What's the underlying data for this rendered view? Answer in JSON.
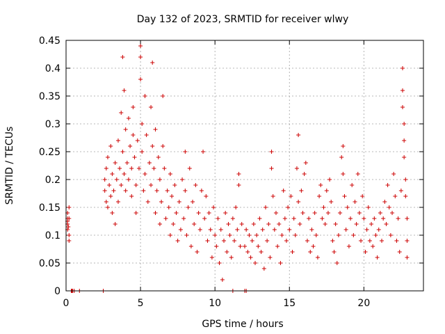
{
  "chart_data": {
    "type": "scatter",
    "title": "Day 132 of 2023, SRMTID for receiver wlwy",
    "xlabel": "GPS time / hours",
    "ylabel": "SRMTID / TECUs",
    "xlim": [
      0,
      24
    ],
    "ylim": [
      0,
      0.45
    ],
    "xticks": [
      0,
      5,
      10,
      15,
      20
    ],
    "yticks": [
      0,
      0.05,
      0.1,
      0.15,
      0.2,
      0.25,
      0.3,
      0.35,
      0.4,
      0.45
    ],
    "grid": true,
    "marker": "+",
    "marker_color": "#cc0000",
    "series": [
      {
        "name": "SRMTID",
        "points_estimated": [
          [
            0.1,
            0.11
          ],
          [
            0.1,
            0.13
          ],
          [
            0.1,
            0.12
          ],
          [
            0.2,
            0.1
          ],
          [
            0.2,
            0.15
          ],
          [
            0.1,
            0.14
          ],
          [
            0.2,
            0.09
          ],
          [
            0.2,
            0.13
          ],
          [
            0.1,
            0.125
          ],
          [
            0.15,
            0.115
          ],
          [
            0.35,
            0
          ],
          [
            0.4,
            0
          ],
          [
            0.45,
            0
          ],
          [
            0.55,
            0
          ],
          [
            0.9,
            0
          ],
          [
            2.5,
            0
          ],
          [
            11.2,
            0
          ],
          [
            12.0,
            0
          ],
          [
            12.1,
            0
          ],
          [
            2.6,
            0.18
          ],
          [
            2.6,
            0.2
          ],
          [
            2.7,
            0.16
          ],
          [
            2.7,
            0.22
          ],
          [
            2.8,
            0.15
          ],
          [
            2.8,
            0.24
          ],
          [
            2.9,
            0.19
          ],
          [
            3.0,
            0.17
          ],
          [
            3.0,
            0.26
          ],
          [
            3.1,
            0.14
          ],
          [
            3.1,
            0.21
          ],
          [
            3.2,
            0.18
          ],
          [
            3.3,
            0.23
          ],
          [
            3.3,
            0.12
          ],
          [
            3.4,
            0.2
          ],
          [
            3.5,
            0.16
          ],
          [
            3.5,
            0.27
          ],
          [
            3.6,
            0.22
          ],
          [
            3.7,
            0.19
          ],
          [
            3.7,
            0.32
          ],
          [
            3.8,
            0.25
          ],
          [
            3.8,
            0.42
          ],
          [
            3.9,
            0.21
          ],
          [
            3.9,
            0.36
          ],
          [
            4.0,
            0.18
          ],
          [
            4.0,
            0.29
          ],
          [
            4.1,
            0.23
          ],
          [
            4.2,
            0.2
          ],
          [
            4.2,
            0.31
          ],
          [
            4.3,
            0.26
          ],
          [
            4.4,
            0.22
          ],
          [
            4.4,
            0.17
          ],
          [
            4.5,
            0.28
          ],
          [
            4.5,
            0.33
          ],
          [
            4.6,
            0.24
          ],
          [
            4.7,
            0.19
          ],
          [
            4.7,
            0.14
          ],
          [
            4.8,
            0.27
          ],
          [
            4.9,
            0.22
          ],
          [
            5.0,
            0.44
          ],
          [
            5.0,
            0.42
          ],
          [
            5.0,
            0.38
          ],
          [
            5.1,
            0.3
          ],
          [
            5.1,
            0.25
          ],
          [
            5.2,
            0.18
          ],
          [
            5.3,
            0.21
          ],
          [
            5.3,
            0.35
          ],
          [
            5.4,
            0.28
          ],
          [
            5.5,
            0.16
          ],
          [
            5.6,
            0.23
          ],
          [
            5.7,
            0.33
          ],
          [
            5.7,
            0.19
          ],
          [
            5.8,
            0.41
          ],
          [
            5.8,
            0.26
          ],
          [
            5.9,
            0.22
          ],
          [
            6.0,
            0.14
          ],
          [
            6.0,
            0.29
          ],
          [
            6.1,
            0.18
          ],
          [
            6.2,
            0.24
          ],
          [
            6.3,
            0.12
          ],
          [
            6.3,
            0.2
          ],
          [
            6.4,
            0.16
          ],
          [
            6.5,
            0.35
          ],
          [
            6.5,
            0.26
          ],
          [
            6.6,
            0.22
          ],
          [
            6.7,
            0.13
          ],
          [
            6.8,
            0.18
          ],
          [
            6.9,
            0.15
          ],
          [
            7.0,
            0.21
          ],
          [
            7.0,
            0.1
          ],
          [
            7.1,
            0.17
          ],
          [
            7.2,
            0.12
          ],
          [
            7.3,
            0.19
          ],
          [
            7.4,
            0.14
          ],
          [
            7.5,
            0.09
          ],
          [
            7.6,
            0.16
          ],
          [
            7.7,
            0.11
          ],
          [
            7.8,
            0.2
          ],
          [
            7.9,
            0.13
          ],
          [
            8.0,
            0.25
          ],
          [
            8.0,
            0.18
          ],
          [
            8.1,
            0.1
          ],
          [
            8.2,
            0.15
          ],
          [
            8.3,
            0.22
          ],
          [
            8.4,
            0.08
          ],
          [
            8.5,
            0.16
          ],
          [
            8.6,
            0.12
          ],
          [
            8.7,
            0.19
          ],
          [
            8.8,
            0.07
          ],
          [
            8.9,
            0.14
          ],
          [
            9.0,
            0.11
          ],
          [
            9.1,
            0.18
          ],
          [
            9.2,
            0.25
          ],
          [
            9.3,
            0.13
          ],
          [
            9.4,
            0.17
          ],
          [
            9.5,
            0.09
          ],
          [
            9.6,
            0.14
          ],
          [
            9.7,
            0.11
          ],
          [
            9.8,
            0.06
          ],
          [
            9.9,
            0.15
          ],
          [
            10.0,
            0.1
          ],
          [
            10.1,
            0.08
          ],
          [
            10.2,
            0.13
          ],
          [
            10.3,
            0.05
          ],
          [
            10.4,
            0.11
          ],
          [
            10.5,
            0.02
          ],
          [
            10.6,
            0.09
          ],
          [
            10.7,
            0.14
          ],
          [
            10.8,
            0.07
          ],
          [
            10.9,
            0.12
          ],
          [
            11.0,
            0.1
          ],
          [
            11.1,
            0.06
          ],
          [
            11.2,
            0.13
          ],
          [
            11.3,
            0.09
          ],
          [
            11.4,
            0.15
          ],
          [
            11.5,
            0.11
          ],
          [
            11.6,
            0.21
          ],
          [
            11.6,
            0.19
          ],
          [
            11.7,
            0.08
          ],
          [
            11.8,
            0.12
          ],
          [
            12.0,
            0.08
          ],
          [
            12.1,
            0.11
          ],
          [
            12.2,
            0.07
          ],
          [
            12.3,
            0.1
          ],
          [
            12.4,
            0.06
          ],
          [
            12.5,
            0.09
          ],
          [
            12.6,
            0.12
          ],
          [
            12.7,
            0.05
          ],
          [
            12.8,
            0.1
          ],
          [
            12.9,
            0.08
          ],
          [
            13.0,
            0.13
          ],
          [
            13.1,
            0.07
          ],
          [
            13.2,
            0.11
          ],
          [
            13.3,
            0.04
          ],
          [
            13.4,
            0.15
          ],
          [
            13.5,
            0.09
          ],
          [
            13.6,
            0.12
          ],
          [
            13.7,
            0.06
          ],
          [
            13.8,
            0.25
          ],
          [
            13.8,
            0.22
          ],
          [
            13.9,
            0.17
          ],
          [
            14.0,
            0.11
          ],
          [
            14.1,
            0.14
          ],
          [
            14.2,
            0.08
          ],
          [
            14.3,
            0.12
          ],
          [
            14.4,
            0.05
          ],
          [
            14.5,
            0.1
          ],
          [
            14.6,
            0.18
          ],
          [
            14.7,
            0.13
          ],
          [
            14.8,
            0.09
          ],
          [
            14.9,
            0.15
          ],
          [
            15.0,
            0.11
          ],
          [
            15.1,
            0.17
          ],
          [
            15.2,
            0.07
          ],
          [
            15.3,
            0.13
          ],
          [
            15.4,
            0.1
          ],
          [
            15.5,
            0.22
          ],
          [
            15.6,
            0.28
          ],
          [
            15.6,
            0.16
          ],
          [
            15.7,
            0.12
          ],
          [
            15.8,
            0.18
          ],
          [
            15.9,
            0.14
          ],
          [
            16.0,
            0.21
          ],
          [
            16.1,
            0.23
          ],
          [
            16.2,
            0.09
          ],
          [
            16.3,
            0.13
          ],
          [
            16.4,
            0.07
          ],
          [
            16.5,
            0.11
          ],
          [
            16.6,
            0.08
          ],
          [
            16.7,
            0.14
          ],
          [
            16.8,
            0.1
          ],
          [
            16.9,
            0.06
          ],
          [
            17.0,
            0.17
          ],
          [
            17.1,
            0.19
          ],
          [
            17.2,
            0.13
          ],
          [
            17.3,
            0.15
          ],
          [
            17.4,
            0.12
          ],
          [
            17.5,
            0.18
          ],
          [
            17.6,
            0.14
          ],
          [
            17.7,
            0.2
          ],
          [
            17.8,
            0.16
          ],
          [
            17.9,
            0.09
          ],
          [
            18.0,
            0.07
          ],
          [
            18.1,
            0.12
          ],
          [
            18.2,
            0.05
          ],
          [
            18.3,
            0.1
          ],
          [
            18.4,
            0.14
          ],
          [
            18.5,
            0.24
          ],
          [
            18.6,
            0.26
          ],
          [
            18.6,
            0.21
          ],
          [
            18.7,
            0.17
          ],
          [
            18.8,
            0.11
          ],
          [
            18.9,
            0.15
          ],
          [
            19.0,
            0.08
          ],
          [
            19.1,
            0.13
          ],
          [
            19.2,
            0.19
          ],
          [
            19.3,
            0.1
          ],
          [
            19.4,
            0.16
          ],
          [
            19.5,
            0.12
          ],
          [
            19.6,
            0.21
          ],
          [
            19.7,
            0.14
          ],
          [
            19.8,
            0.09
          ],
          [
            19.9,
            0.17
          ],
          [
            20.0,
            0.13
          ],
          [
            20.1,
            0.07
          ],
          [
            20.2,
            0.11
          ],
          [
            20.3,
            0.15
          ],
          [
            20.4,
            0.09
          ],
          [
            20.5,
            0.12
          ],
          [
            20.6,
            0.08
          ],
          [
            20.7,
            0.13
          ],
          [
            20.8,
            0.1
          ],
          [
            20.9,
            0.06
          ],
          [
            21.0,
            0.11
          ],
          [
            21.1,
            0.14
          ],
          [
            21.2,
            0.09
          ],
          [
            21.3,
            0.13
          ],
          [
            21.4,
            0.16
          ],
          [
            21.5,
            0.12
          ],
          [
            21.6,
            0.19
          ],
          [
            21.7,
            0.15
          ],
          [
            21.8,
            0.1
          ],
          [
            21.9,
            0.14
          ],
          [
            22.0,
            0.21
          ],
          [
            22.1,
            0.17
          ],
          [
            22.2,
            0.09
          ],
          [
            22.3,
            0.13
          ],
          [
            22.4,
            0.07
          ],
          [
            22.5,
            0.18
          ],
          [
            22.6,
            0.4
          ],
          [
            22.6,
            0.36
          ],
          [
            22.6,
            0.33
          ],
          [
            22.7,
            0.3
          ],
          [
            22.7,
            0.27
          ],
          [
            22.7,
            0.24
          ],
          [
            22.8,
            0.2
          ],
          [
            22.8,
            0.17
          ],
          [
            22.9,
            0.13
          ],
          [
            22.9,
            0.09
          ],
          [
            22.9,
            0.06
          ]
        ]
      }
    ]
  }
}
